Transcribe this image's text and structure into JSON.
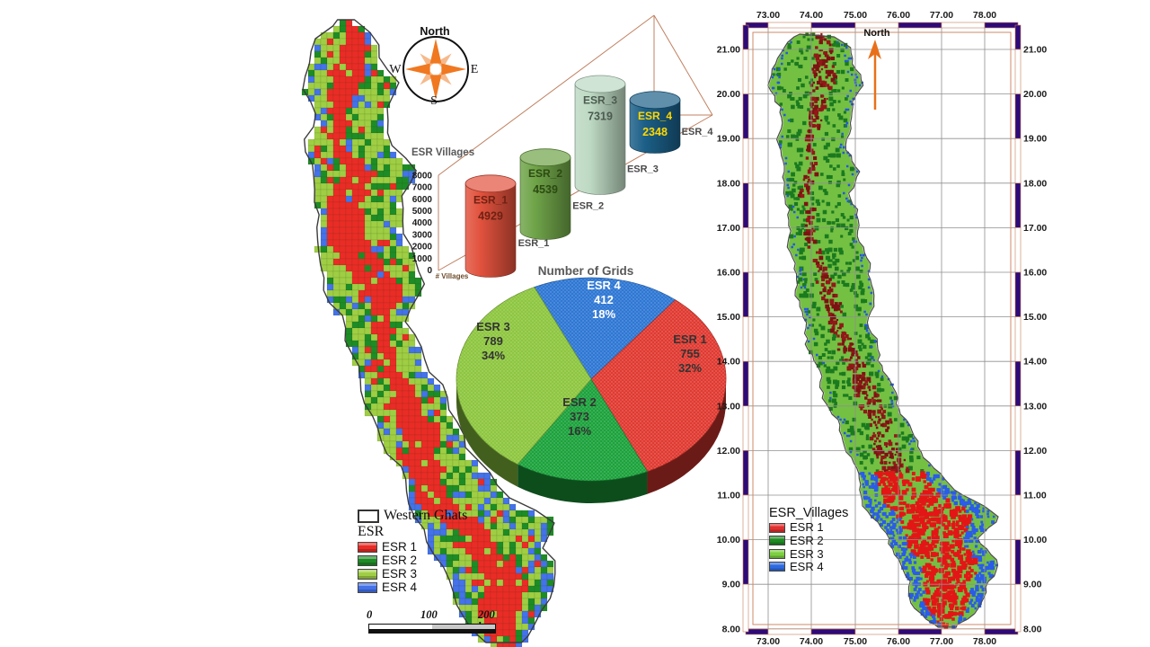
{
  "compass": {
    "north": "North",
    "west": "W",
    "east": "E",
    "south": "S"
  },
  "chart_data": [
    {
      "type": "bar",
      "title": "ESR Villages",
      "xlabel": "# Villages",
      "categories": [
        "ESR_1",
        "ESR_2",
        "ESR_3",
        "ESR_4"
      ],
      "values": [
        4929,
        4539,
        7319,
        2348
      ],
      "ylim": [
        0,
        8000
      ],
      "yticks": [
        "8000",
        "7000",
        "6000",
        "5000",
        "4000",
        "3000",
        "2000",
        "1000",
        "0"
      ],
      "bar_colors": [
        "#e1523d",
        "#6fa348",
        "#bdd9c3",
        "#1b5f87"
      ],
      "bar_label_colors": [
        "#6e2113",
        "#2c4a12",
        "#4b5b4f",
        "#ffd700"
      ],
      "legend_position": "none",
      "grid": false
    },
    {
      "type": "pie",
      "title": "Number of Grids",
      "labels": [
        "ESR 1",
        "ESR 2",
        "ESR 3",
        "ESR 4"
      ],
      "values": [
        755,
        373,
        789,
        412
      ],
      "percents": [
        "32%",
        "16%",
        "34%",
        "18%"
      ],
      "colors": [
        "#e03a31",
        "#1ca23c",
        "#8dc63f",
        "#2e77d4"
      ],
      "label_colors": [
        "#333333",
        "#333333",
        "#333333",
        "#ffffff"
      ],
      "start_angle_deg": 115,
      "legend_position": "none"
    }
  ],
  "left_map": {
    "legend": {
      "boundary_label": "Western Ghats",
      "group_title": "ESR",
      "items": [
        {
          "label": "ESR 1",
          "color": "#ea2c26"
        },
        {
          "label": "ESR 2",
          "color": "#1e8c26"
        },
        {
          "label": "ESR 3",
          "color": "#9fce44"
        },
        {
          "label": "ESR 4",
          "color": "#4472e8"
        }
      ]
    },
    "scalebar": {
      "tick0": "0",
      "tick1": "100",
      "tick2": "200 km"
    }
  },
  "right_map": {
    "north_label": "North",
    "x_ticks": [
      "73.00",
      "74.00",
      "75.00",
      "76.00",
      "77.00",
      "78.00"
    ],
    "y_ticks": [
      "21.00",
      "20.00",
      "19.00",
      "18.00",
      "17.00",
      "16.00",
      "15.00",
      "14.00",
      "13.00",
      "12.00",
      "11.00",
      "10.00",
      "9.00",
      "8.00"
    ],
    "legend": {
      "title": "ESR_Villages",
      "items": [
        {
          "label": "ESR 1",
          "color": "#e03030"
        },
        {
          "label": "ESR 2",
          "color": "#1f8b24"
        },
        {
          "label": "ESR 3",
          "color": "#7ccf3f"
        },
        {
          "label": "ESR 4",
          "color": "#2e6be0"
        }
      ]
    }
  }
}
